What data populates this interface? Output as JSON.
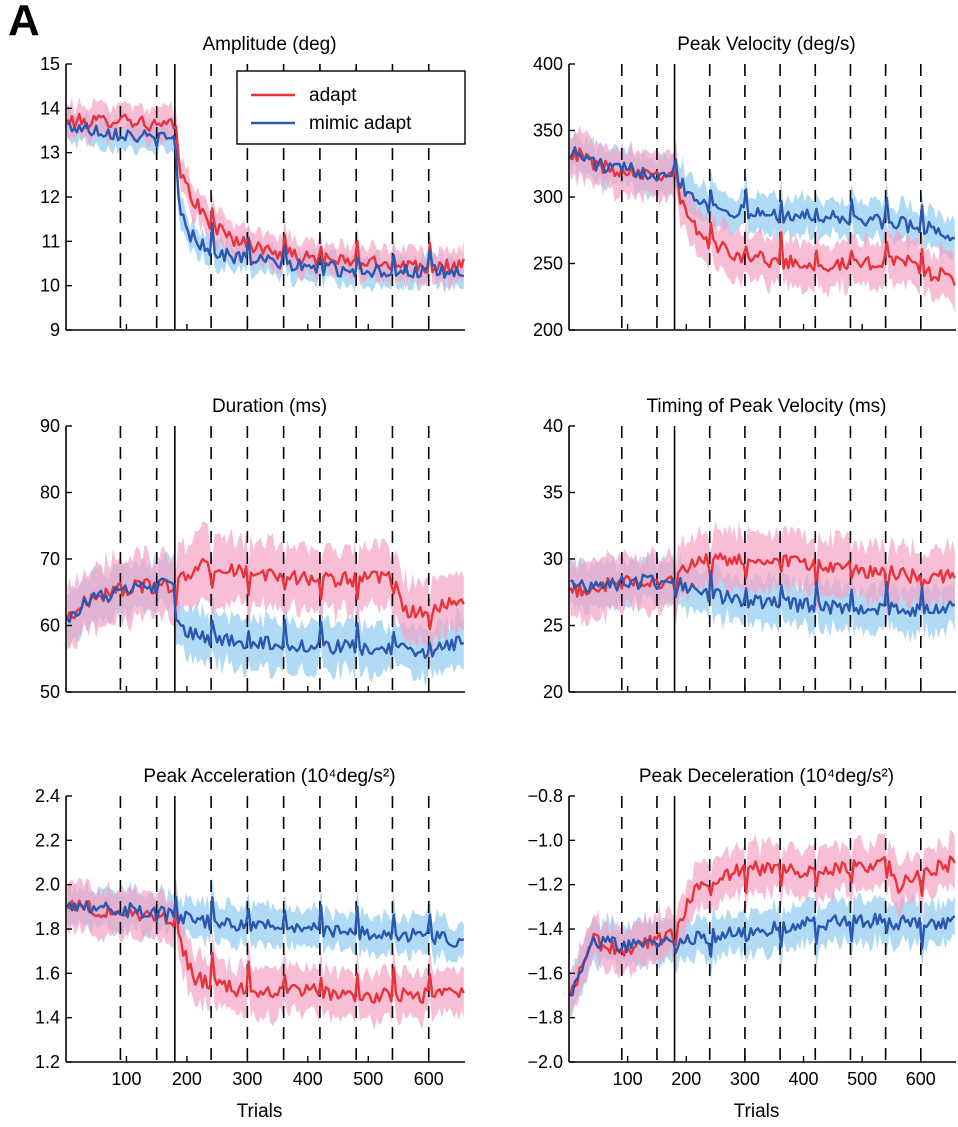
{
  "figure": {
    "panel_label": "A",
    "legend": {
      "entries": [
        {
          "label": "adapt",
          "color": "#e8333a"
        },
        {
          "label": "mimic adapt",
          "color": "#2a58b0"
        }
      ]
    },
    "colors": {
      "adapt": "#e8333a",
      "adapt_band": "#f3a3c5",
      "mimic": "#2a58b0",
      "mimic_band": "#a3d4f2",
      "overlap_band": "#c39fd8"
    }
  },
  "chart_data": [
    {
      "type": "line",
      "title": "Amplitude (deg)",
      "xlabel": "",
      "ylabel": "",
      "xlim": [
        0,
        660
      ],
      "ylim": [
        9,
        15
      ],
      "xticks": [
        100,
        200,
        300,
        400,
        500,
        600
      ],
      "yticks": [
        9,
        10,
        11,
        12,
        13,
        14,
        15
      ],
      "ytick_labels": [
        "9",
        "10",
        "11",
        "12",
        "13",
        "14",
        "15"
      ],
      "show_xtick_labels": false,
      "block_boundaries_dashed": [
        90,
        150,
        240,
        300,
        360,
        420,
        480,
        540,
        600
      ],
      "adaptation_onset": 180,
      "legend": "top-right",
      "series": [
        {
          "name": "adapt",
          "keypoints": [
            [
              0,
              13.7
            ],
            [
              60,
              13.7
            ],
            [
              90,
              13.8
            ],
            [
              150,
              13.6
            ],
            [
              178,
              13.6
            ],
            [
              188,
              12.6
            ],
            [
              205,
              12.1
            ],
            [
              230,
              11.5
            ],
            [
              260,
              11.2
            ],
            [
              300,
              10.9
            ],
            [
              400,
              10.6
            ],
            [
              500,
              10.5
            ],
            [
              600,
              10.45
            ],
            [
              660,
              10.45
            ]
          ],
          "band": 0.35
        },
        {
          "name": "mimic adapt",
          "keypoints": [
            [
              0,
              13.6
            ],
            [
              60,
              13.5
            ],
            [
              150,
              13.3
            ],
            [
              178,
              13.3
            ],
            [
              188,
              11.8
            ],
            [
              200,
              11.2
            ],
            [
              230,
              10.9
            ],
            [
              260,
              10.7
            ],
            [
              300,
              10.6
            ],
            [
              400,
              10.4
            ],
            [
              500,
              10.35
            ],
            [
              600,
              10.3
            ],
            [
              660,
              10.3
            ]
          ],
          "band": 0.3
        }
      ]
    },
    {
      "type": "line",
      "title": "Peak Velocity (deg/s)",
      "xlabel": "",
      "ylabel": "",
      "xlim": [
        0,
        660
      ],
      "ylim": [
        200,
        400
      ],
      "xticks": [
        100,
        200,
        300,
        400,
        500,
        600
      ],
      "yticks": [
        200,
        250,
        300,
        350,
        400
      ],
      "ytick_labels": [
        "200",
        "250",
        "300",
        "350",
        "400"
      ],
      "show_xtick_labels": false,
      "block_boundaries_dashed": [
        90,
        150,
        240,
        300,
        360,
        420,
        480,
        540,
        600
      ],
      "adaptation_onset": 180,
      "series": [
        {
          "name": "adapt",
          "keypoints": [
            [
              0,
              335
            ],
            [
              60,
              322
            ],
            [
              150,
              318
            ],
            [
              178,
              318
            ],
            [
              200,
              285
            ],
            [
              240,
              265
            ],
            [
              300,
              255
            ],
            [
              400,
              250
            ],
            [
              500,
              248
            ],
            [
              560,
              255
            ],
            [
              600,
              245
            ],
            [
              660,
              238
            ]
          ],
          "band": 16
        },
        {
          "name": "mimic adapt",
          "keypoints": [
            [
              0,
              335
            ],
            [
              60,
              322
            ],
            [
              150,
              318
            ],
            [
              178,
              320
            ],
            [
              200,
              305
            ],
            [
              240,
              293
            ],
            [
              300,
              288
            ],
            [
              400,
              285
            ],
            [
              500,
              283
            ],
            [
              600,
              278
            ],
            [
              660,
              270
            ]
          ],
          "band": 13
        }
      ]
    },
    {
      "type": "line",
      "title": "Duration (ms)",
      "xlabel": "",
      "ylabel": "",
      "xlim": [
        0,
        660
      ],
      "ylim": [
        50,
        90
      ],
      "xticks": [
        100,
        200,
        300,
        400,
        500,
        600
      ],
      "yticks": [
        50,
        60,
        70,
        80,
        90
      ],
      "ytick_labels": [
        "50",
        "60",
        "70",
        "80",
        "90"
      ],
      "show_xtick_labels": false,
      "block_boundaries_dashed": [
        90,
        150,
        240,
        300,
        360,
        420,
        480,
        540,
        600
      ],
      "adaptation_onset": 180,
      "series": [
        {
          "name": "adapt",
          "keypoints": [
            [
              0,
              61
            ],
            [
              40,
              64
            ],
            [
              90,
              65.5
            ],
            [
              150,
              66
            ],
            [
              178,
              66
            ],
            [
              220,
              69
            ],
            [
              300,
              68
            ],
            [
              400,
              67
            ],
            [
              500,
              67
            ],
            [
              540,
              67
            ],
            [
              560,
              62
            ],
            [
              600,
              62
            ],
            [
              660,
              64
            ]
          ],
          "band": 4.5
        },
        {
          "name": "mimic adapt",
          "keypoints": [
            [
              0,
              61
            ],
            [
              40,
              64
            ],
            [
              90,
              65
            ],
            [
              150,
              66
            ],
            [
              178,
              66
            ],
            [
              190,
              59
            ],
            [
              240,
              58
            ],
            [
              300,
              57.5
            ],
            [
              400,
              57
            ],
            [
              500,
              56.5
            ],
            [
              600,
              56
            ],
            [
              660,
              57.5
            ]
          ],
          "band": 3.5
        }
      ]
    },
    {
      "type": "line",
      "title": "Timing of Peak Velocity (ms)",
      "xlabel": "",
      "ylabel": "",
      "xlim": [
        0,
        660
      ],
      "ylim": [
        20,
        40
      ],
      "xticks": [
        100,
        200,
        300,
        400,
        500,
        600
      ],
      "yticks": [
        20,
        25,
        30,
        35,
        40
      ],
      "ytick_labels": [
        "20",
        "25",
        "30",
        "35",
        "40"
      ],
      "show_xtick_labels": false,
      "block_boundaries_dashed": [
        90,
        150,
        240,
        300,
        360,
        420,
        480,
        540,
        600
      ],
      "adaptation_onset": 180,
      "series": [
        {
          "name": "adapt",
          "keypoints": [
            [
              0,
              27.5
            ],
            [
              90,
              28.2
            ],
            [
              150,
              28.3
            ],
            [
              178,
              28.5
            ],
            [
              220,
              29.8
            ],
            [
              300,
              30
            ],
            [
              400,
              29.6
            ],
            [
              500,
              29.2
            ],
            [
              600,
              28.6
            ],
            [
              660,
              28.8
            ]
          ],
          "band": 2
        },
        {
          "name": "mimic adapt",
          "keypoints": [
            [
              0,
              28
            ],
            [
              90,
              28.2
            ],
            [
              150,
              28.3
            ],
            [
              178,
              28.5
            ],
            [
              220,
              27.5
            ],
            [
              300,
              26.8
            ],
            [
              400,
              26.5
            ],
            [
              500,
              26.3
            ],
            [
              600,
              26.2
            ],
            [
              660,
              26.5
            ]
          ],
          "band": 1.6
        }
      ]
    },
    {
      "type": "line",
      "title": "Peak Acceleration (10⁴deg/s²)",
      "xlabel": "Trials",
      "ylabel": "",
      "xlim": [
        0,
        660
      ],
      "ylim": [
        1.2,
        2.4
      ],
      "xticks": [
        100,
        200,
        300,
        400,
        500,
        600
      ],
      "yticks": [
        1.2,
        1.4,
        1.6,
        1.8,
        2.0,
        2.2,
        2.4
      ],
      "ytick_labels": [
        "1.2",
        "1.4",
        "1.6",
        "1.8",
        "2.0",
        "2.2",
        "2.4"
      ],
      "xtick_labels": [
        "100",
        "200",
        "300",
        "400",
        "500",
        "600"
      ],
      "show_xtick_labels": true,
      "block_boundaries_dashed": [
        90,
        150,
        240,
        300,
        360,
        420,
        480,
        540,
        600
      ],
      "adaptation_onset": 180,
      "series": [
        {
          "name": "adapt",
          "keypoints": [
            [
              0,
              1.92
            ],
            [
              60,
              1.88
            ],
            [
              150,
              1.86
            ],
            [
              178,
              1.84
            ],
            [
              210,
              1.58
            ],
            [
              260,
              1.54
            ],
            [
              300,
              1.52
            ],
            [
              400,
              1.52
            ],
            [
              500,
              1.5
            ],
            [
              600,
              1.5
            ],
            [
              660,
              1.52
            ]
          ],
          "band": 0.1
        },
        {
          "name": "mimic adapt",
          "keypoints": [
            [
              0,
              1.92
            ],
            [
              60,
              1.9
            ],
            [
              150,
              1.87
            ],
            [
              178,
              1.86
            ],
            [
              220,
              1.83
            ],
            [
              300,
              1.82
            ],
            [
              400,
              1.8
            ],
            [
              500,
              1.78
            ],
            [
              600,
              1.77
            ],
            [
              660,
              1.74
            ]
          ],
          "band": 0.08
        }
      ]
    },
    {
      "type": "line",
      "title": "Peak Deceleration (10⁴deg/s²)",
      "xlabel": "Trials",
      "ylabel": "",
      "xlim": [
        0,
        660
      ],
      "ylim": [
        -2.0,
        -0.8
      ],
      "xticks": [
        100,
        200,
        300,
        400,
        500,
        600
      ],
      "yticks": [
        -2.0,
        -1.8,
        -1.6,
        -1.4,
        -1.2,
        -1.0,
        -0.8
      ],
      "ytick_labels": [
        "−2.0",
        "−1.8",
        "−1.6",
        "−1.4",
        "−1.2",
        "−1.0",
        "−0.8"
      ],
      "xtick_labels": [
        "100",
        "200",
        "300",
        "400",
        "500",
        "600"
      ],
      "show_xtick_labels": true,
      "block_boundaries_dashed": [
        90,
        150,
        240,
        300,
        360,
        420,
        480,
        540,
        600
      ],
      "adaptation_onset": 180,
      "series": [
        {
          "name": "adapt",
          "keypoints": [
            [
              0,
              -1.72
            ],
            [
              40,
              -1.45
            ],
            [
              90,
              -1.5
            ],
            [
              150,
              -1.45
            ],
            [
              178,
              -1.42
            ],
            [
              220,
              -1.2
            ],
            [
              300,
              -1.12
            ],
            [
              400,
              -1.14
            ],
            [
              500,
              -1.12
            ],
            [
              540,
              -1.08
            ],
            [
              560,
              -1.22
            ],
            [
              600,
              -1.14
            ],
            [
              660,
              -1.1
            ]
          ],
          "band": 0.1
        },
        {
          "name": "mimic adapt",
          "keypoints": [
            [
              0,
              -1.72
            ],
            [
              40,
              -1.45
            ],
            [
              90,
              -1.48
            ],
            [
              150,
              -1.45
            ],
            [
              178,
              -1.45
            ],
            [
              220,
              -1.44
            ],
            [
              300,
              -1.42
            ],
            [
              400,
              -1.38
            ],
            [
              500,
              -1.36
            ],
            [
              600,
              -1.38
            ],
            [
              660,
              -1.36
            ]
          ],
          "band": 0.09
        }
      ]
    }
  ]
}
